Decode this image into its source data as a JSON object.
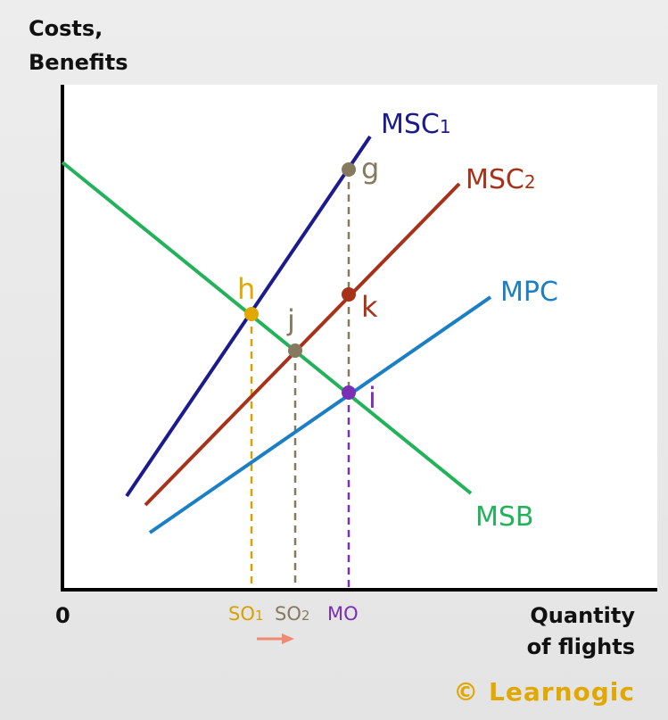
{
  "axes": {
    "y_title_line1": "Costs,",
    "y_title_line2": "Benefits",
    "x_title_line1": "Quantity",
    "x_title_line2": "of flights",
    "origin": "0"
  },
  "curves": {
    "msc1": {
      "base": "MSC",
      "sub": "1",
      "color": "#1b1b8f"
    },
    "msc2": {
      "base": "MSC",
      "sub": "2",
      "color": "#a83219"
    },
    "mpc": {
      "label": "MPC",
      "color": "#1a7fc4"
    },
    "msb": {
      "label": "MSB",
      "color": "#22b25a"
    }
  },
  "points": {
    "g": {
      "label": "g",
      "color": "#857a5e"
    },
    "h": {
      "label": "h",
      "color": "#e0a800"
    },
    "j": {
      "label": "j",
      "color": "#857a5e"
    },
    "k": {
      "label": "k",
      "color": "#a83219"
    },
    "i": {
      "label": "i",
      "color": "#7a2fb5"
    }
  },
  "ticks": {
    "so1": {
      "base": "SO",
      "sub": "1",
      "color": "#d9a100"
    },
    "so2": {
      "base": "SO",
      "sub": "2",
      "color": "#857a5e"
    },
    "mo": {
      "label": "MO",
      "color": "#7a2fb5"
    }
  },
  "arrow_color": "#f08a73",
  "credit": {
    "text": "© Learnogic",
    "color": "#e0a800"
  }
}
